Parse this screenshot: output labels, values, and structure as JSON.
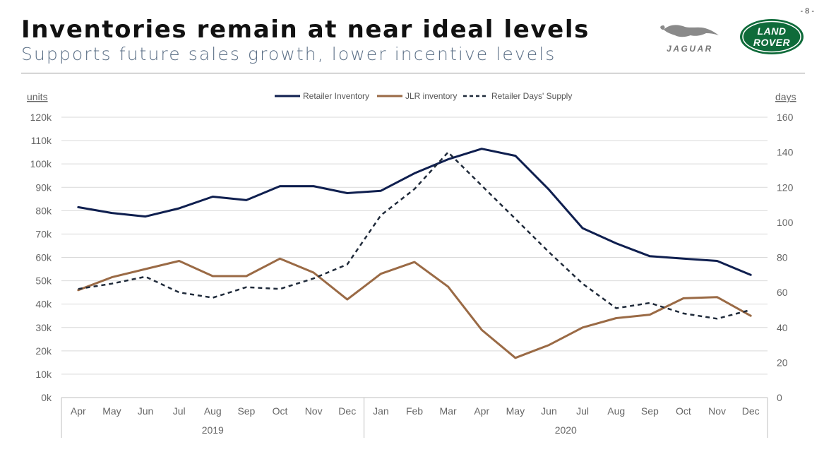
{
  "header": {
    "page_number": "- 8 -",
    "title": "Inventories remain at near ideal levels",
    "subtitle": "Supports future sales growth, lower incentive levels"
  },
  "logos": {
    "jaguar": {
      "word": "JAGUAR",
      "icon": "jaguar-leaper-icon"
    },
    "land_rover": {
      "line1": "LAND",
      "line2": "ROVER",
      "color": "#0f6b3a"
    }
  },
  "chart_data": {
    "type": "line",
    "left_axis_label": "units",
    "right_axis_label": "days",
    "left_ylim": [
      0,
      120
    ],
    "left_ticks": [
      "0k",
      "10k",
      "20k",
      "30k",
      "40k",
      "50k",
      "60k",
      "70k",
      "80k",
      "90k",
      "100k",
      "110k",
      "120k"
    ],
    "right_ylim": [
      0,
      160
    ],
    "right_ticks": [
      "0",
      "20",
      "40",
      "60",
      "80",
      "100",
      "120",
      "140",
      "160"
    ],
    "categories": [
      "Apr",
      "May",
      "Jun",
      "Jul",
      "Aug",
      "Sep",
      "Oct",
      "Nov",
      "Dec",
      "Jan",
      "Feb",
      "Mar",
      "Apr",
      "May",
      "Jun",
      "Jul",
      "Aug",
      "Sep",
      "Oct",
      "Nov",
      "Dec"
    ],
    "year_groups": [
      {
        "label": "2019",
        "count": 9
      },
      {
        "label": "2020",
        "count": 12
      }
    ],
    "grid": true,
    "legend_position": "top-center",
    "series": [
      {
        "name": "Retailer Inventory",
        "axis": "left",
        "color": "#0f1f4f",
        "dash": false,
        "values": [
          81.5,
          79,
          77.5,
          81,
          86,
          84.5,
          90.5,
          90.5,
          87.5,
          88.5,
          96,
          102,
          106.5,
          103.5,
          89,
          72.5,
          66,
          60.5,
          59.5,
          58.5,
          52.5
        ]
      },
      {
        "name": "JLR inventory",
        "axis": "left",
        "color": "#9a6a45",
        "dash": false,
        "values": [
          46,
          51.5,
          55,
          58.5,
          52,
          52,
          59.5,
          53.5,
          42,
          53,
          58,
          47.5,
          29,
          17,
          22.5,
          30,
          34,
          35.5,
          42.5,
          43,
          35
        ]
      },
      {
        "name": "Retailer Days' Supply",
        "axis": "right",
        "color": "#1f2a3a",
        "dash": true,
        "values": [
          62,
          65,
          69,
          60,
          57,
          63,
          62,
          68,
          76,
          104,
          119,
          140,
          121,
          102,
          83,
          65,
          51,
          54,
          48,
          45,
          50
        ]
      }
    ]
  }
}
